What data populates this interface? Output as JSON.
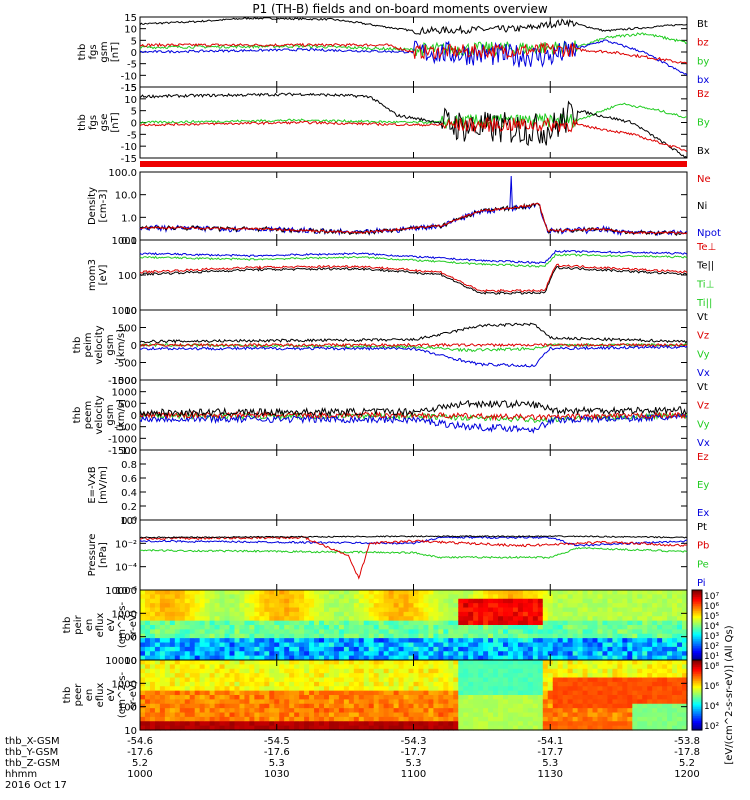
{
  "title": "P1 (TH-B) fields and on-board moments overview",
  "colors": {
    "black": "#000000",
    "red": "#dd0000",
    "green": "#22cc22",
    "blue": "#0000dd"
  },
  "chart_data": [
    {
      "type": "line",
      "ylabel": [
        "thb",
        "fgs",
        "gsm",
        "[nT]"
      ],
      "yticks": [
        "15",
        "10",
        "5",
        "0",
        "-5",
        "-10",
        "-15"
      ],
      "ylim": [
        -15,
        15
      ],
      "legend": [
        {
          "name": "Bt",
          "color": "#000000"
        },
        {
          "name": "bz",
          "color": "#dd0000"
        },
        {
          "name": "by",
          "color": "#22cc22"
        },
        {
          "name": "bx",
          "color": "#0000dd"
        }
      ]
    },
    {
      "type": "line",
      "ylabel": [
        "thb",
        "fgs",
        "gse",
        "[nT]"
      ],
      "yticks": [
        "15",
        "10",
        "5",
        "0",
        "-5",
        "-10",
        "-15"
      ],
      "ylim": [
        -15,
        15
      ],
      "legend": [
        {
          "name": "Bz",
          "color": "#dd0000"
        },
        {
          "name": "By",
          "color": "#22cc22"
        },
        {
          "name": "Bx",
          "color": "#000000"
        }
      ]
    },
    {
      "type": "line",
      "ylabel": [
        "Density",
        "[cm-3]"
      ],
      "yticks": [
        "100.0",
        "10.0",
        "1.0",
        "0.1"
      ],
      "yscale": "log",
      "ylim": [
        0.05,
        300
      ],
      "legend": [
        {
          "name": "Ne",
          "color": "#dd0000"
        },
        {
          "name": "Ni",
          "color": "#000000"
        },
        {
          "name": "Npot",
          "color": "#0000dd"
        }
      ]
    },
    {
      "type": "line",
      "ylabel": [
        "mom3",
        "[eV]"
      ],
      "yticks": [
        "1000",
        "100",
        "10"
      ],
      "yscale": "log",
      "ylim": [
        3,
        3000
      ],
      "legend": [
        {
          "name": "Te⊥",
          "color": "#dd0000"
        },
        {
          "name": "Te||",
          "color": "#000000"
        },
        {
          "name": "Ti⊥",
          "color": "#22cc22"
        },
        {
          "name": "Ti||",
          "color": "#22cc22"
        }
      ]
    },
    {
      "type": "line",
      "ylabel": [
        "thb",
        "peim",
        "velocity",
        "gsm",
        "[km/s]"
      ],
      "yticks": [
        "1000",
        "500",
        "0",
        "-500",
        "-1000"
      ],
      "ylim": [
        -1000,
        1000
      ],
      "legend": [
        {
          "name": "Vt",
          "color": "#000000"
        },
        {
          "name": "Vz",
          "color": "#dd0000"
        },
        {
          "name": "Vy",
          "color": "#22cc22"
        },
        {
          "name": "Vx",
          "color": "#0000dd"
        }
      ]
    },
    {
      "type": "line",
      "ylabel": [
        "thb",
        "peem",
        "velocity",
        "gsm",
        "[km/s]"
      ],
      "yticks": [
        "1500",
        "1000",
        "500",
        "0",
        "-500",
        "-1000",
        "-1500"
      ],
      "ylim": [
        -1500,
        1500
      ],
      "legend": [
        {
          "name": "Vt",
          "color": "#000000"
        },
        {
          "name": "Vz",
          "color": "#dd0000"
        },
        {
          "name": "Vy",
          "color": "#22cc22"
        },
        {
          "name": "Vx",
          "color": "#0000dd"
        }
      ]
    },
    {
      "type": "line",
      "ylabel": [
        "E=-VxB",
        "[mV/m]"
      ],
      "yticks": [
        "1.0",
        "0.8",
        "0.6",
        "0.4",
        "0.2",
        "0.0"
      ],
      "ylim": [
        0,
        1
      ],
      "legend": [
        {
          "name": "Ez",
          "color": "#dd0000"
        },
        {
          "name": "Ey",
          "color": "#22cc22"
        },
        {
          "name": "Ex",
          "color": "#0000dd"
        }
      ]
    },
    {
      "type": "line",
      "ylabel": [
        "Pressure",
        "[nPa]"
      ],
      "yticks": [
        "10⁰",
        "10⁻²",
        "10⁻⁴",
        "10⁻⁶"
      ],
      "yscale": "log",
      "ylim": [
        1e-06,
        1
      ],
      "legend": [
        {
          "name": "Pt",
          "color": "#000000"
        },
        {
          "name": "Pb",
          "color": "#dd0000"
        },
        {
          "name": "Pe",
          "color": "#22cc22"
        },
        {
          "name": "Pi",
          "color": "#0000dd"
        }
      ]
    },
    {
      "type": "heatmap",
      "ylabel": [
        "thb",
        "peir",
        "en",
        "eflux",
        "eV",
        "(cm^2-s-",
        "sr-eV)"
      ],
      "yticks": [
        "10000",
        "1000",
        "100",
        "10"
      ],
      "yscale": "log",
      "ylim": [
        5,
        25000
      ],
      "colorbar_ticks": [
        "10⁷",
        "10⁶",
        "10⁵",
        "10⁴",
        "10³",
        "10²",
        "10¹"
      ]
    },
    {
      "type": "heatmap",
      "ylabel": [
        "thb",
        "peer",
        "en",
        "eflux",
        "eV",
        "(cm^2-s-",
        "sr-eV)"
      ],
      "yticks": [
        "10000",
        "1000",
        "100",
        "10"
      ],
      "yscale": "log",
      "ylim": [
        5,
        25000
      ],
      "colorbar_ticks": [
        "10⁸",
        "10⁶",
        "10⁴",
        "10²"
      ]
    }
  ],
  "colorbar_label": "[eV/(cm^2-s-sr-eV)] (All Qs)",
  "xaxis": {
    "rows": [
      {
        "label": "thb_X-GSM",
        "values": [
          "-54.6",
          "-54.5",
          "-54.3",
          "-54.1",
          "-53.8"
        ]
      },
      {
        "label": "thb_Y-GSM",
        "values": [
          "-17.6",
          "-17.6",
          "-17.7",
          "-17.7",
          "-17.8"
        ]
      },
      {
        "label": "thb_Z-GSM",
        "values": [
          "5.2",
          "5.3",
          "5.3",
          "5.3",
          "5.2"
        ]
      },
      {
        "label": "hhmm",
        "values": [
          "1000",
          "1030",
          "1100",
          "1130",
          "1200"
        ]
      }
    ],
    "date": "2016 Oct 17"
  }
}
